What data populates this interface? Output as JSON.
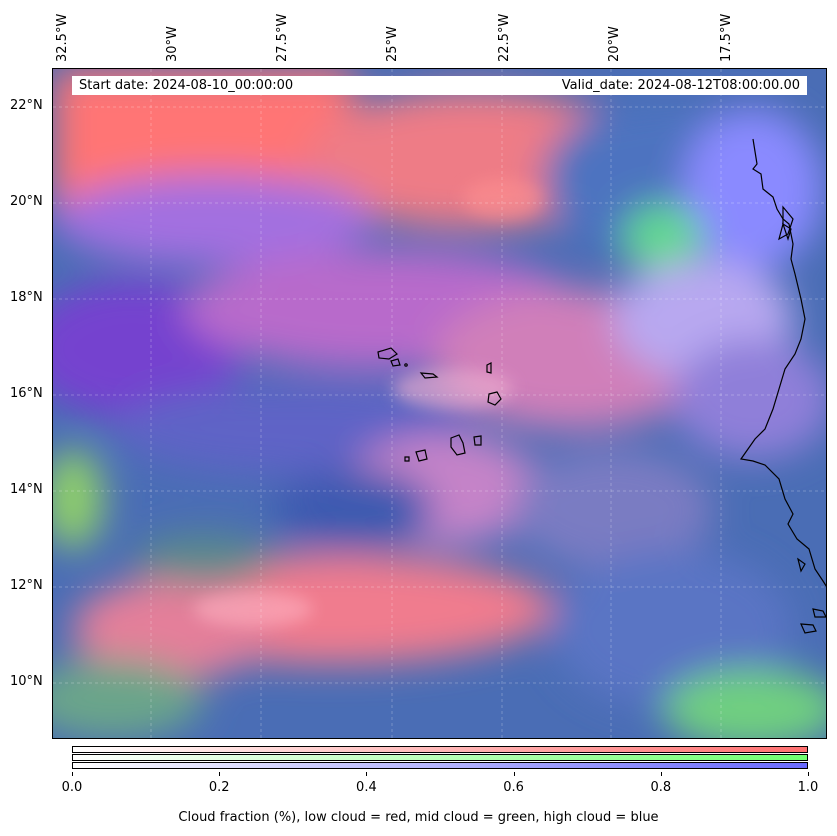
{
  "banner": {
    "start_date": "Start date: 2024-08-10_00:00:00",
    "valid_date": "Valid_date: 2024-08-12T08:00:00.00"
  },
  "map": {
    "lon_labels": [
      "32.5°W",
      "30°W",
      "27.5°W",
      "25°W",
      "22.5°W",
      "20°W",
      "17.5°W"
    ],
    "lat_labels": [
      "22°N",
      "20°N",
      "18°N",
      "16°N",
      "14°N",
      "12°N",
      "10°N"
    ],
    "layer_colors": {
      "low_cloud": "#ff7070",
      "mid_cloud": "#70ff70",
      "high_cloud": "#6a6aff",
      "ocean_base": "#3f6fb0"
    }
  },
  "colorbar": {
    "ticks": [
      "0.0",
      "0.2",
      "0.4",
      "0.6",
      "0.8",
      "1.0"
    ],
    "caption": "Cloud fraction (%), low cloud = red, mid cloud = green, high cloud = blue"
  }
}
